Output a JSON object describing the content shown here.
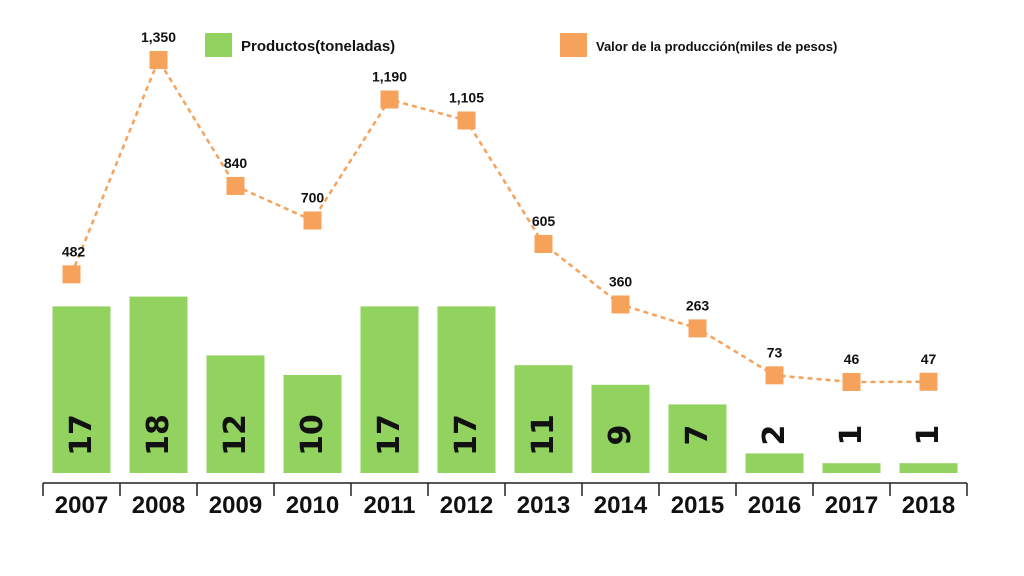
{
  "chart_data": {
    "type": "bar+line",
    "categories": [
      "2007",
      "2008",
      "2009",
      "2010",
      "2011",
      "2012",
      "2013",
      "2014",
      "2015",
      "2016",
      "2017",
      "2018"
    ],
    "series": [
      {
        "name": "Productos(toneladas)",
        "type": "bar",
        "color": "#92d25f",
        "values": [
          17,
          18,
          12,
          10,
          17,
          17,
          11,
          9,
          7,
          2,
          1,
          1
        ]
      },
      {
        "name": "Valor de la producción(miles de pesos)",
        "type": "line",
        "color": "#f7a25b",
        "values": [
          482,
          1350,
          840,
          700,
          1190,
          1105,
          605,
          360,
          263,
          73,
          46,
          47
        ],
        "labels": [
          "482",
          "1,350",
          "840",
          "700",
          "1,190",
          "1,105",
          "605",
          "360",
          "263",
          "73",
          "46",
          "47"
        ]
      }
    ],
    "legend": "top"
  }
}
